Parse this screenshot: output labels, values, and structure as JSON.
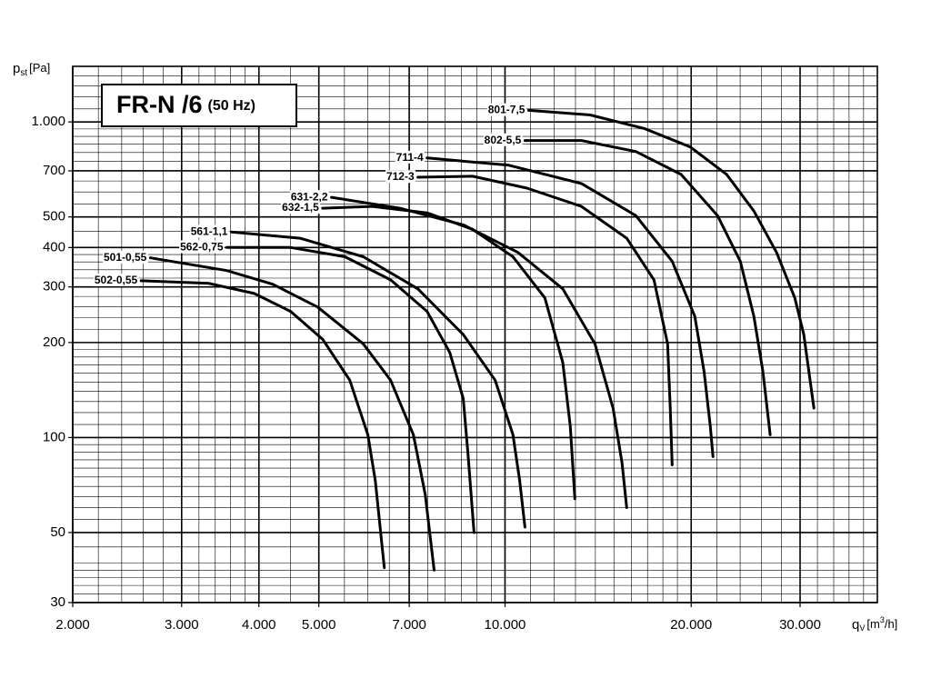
{
  "chart_data": {
    "type": "line",
    "title": "FR-N /6",
    "subtitle": "(50 Hz)",
    "ylabel": "p",
    "ylabel_sub": "st",
    "ylabel_unit": "[Pa]",
    "xlabel": "q",
    "xlabel_sub": "V",
    "xlabel_unit": "[m",
    "xlabel_sup": "3",
    "xlabel_unit_end": "/h]",
    "xscale": "log",
    "yscale": "log",
    "grid": true,
    "minor_grid": true,
    "xlim": [
      2000,
      40000
    ],
    "xticks": [
      {
        "value": 2000,
        "label": "2.000"
      },
      {
        "value": 3000,
        "label": "3.000"
      },
      {
        "value": 4000,
        "label": "4.000"
      },
      {
        "value": 5000,
        "label": "5.000"
      },
      {
        "value": 7000,
        "label": "7.000"
      },
      {
        "value": 10000,
        "label": "10.000"
      },
      {
        "value": 20000,
        "label": "20.000"
      },
      {
        "value": 30000,
        "label": "30.000"
      }
    ],
    "ylim": [
      30,
      1500
    ],
    "yticks": [
      30,
      50,
      100,
      200,
      300,
      400,
      500,
      700,
      {
        "value": 1000,
        "label": "1.000"
      }
    ],
    "series": [
      {
        "name": "502-0,55",
        "color": "#000000",
        "x": [
          2580,
          3320,
          3930,
          4500,
          5070,
          5610,
          6000,
          6170,
          6380
        ],
        "values": [
          314,
          308,
          286,
          251,
          205,
          152,
          102,
          73,
          38.7
        ]
      },
      {
        "name": "501-0,55",
        "color": "#000000",
        "x": [
          2670,
          3550,
          4210,
          4980,
          5900,
          6530,
          7110,
          7430,
          7680
        ],
        "values": [
          371,
          338,
          306,
          259,
          198,
          152,
          102,
          66,
          38
        ]
      },
      {
        "name": "562-0,75",
        "color": "#000000",
        "x": [
          3550,
          4500,
          5510,
          6530,
          7480,
          8140,
          8560,
          8710,
          8910
        ],
        "values": [
          400,
          400,
          374,
          316,
          251,
          186,
          133,
          89,
          50
        ]
      },
      {
        "name": "561-1,1",
        "color": "#000000",
        "x": [
          3610,
          4660,
          5900,
          7230,
          8560,
          9640,
          10300,
          10560,
          10770
        ],
        "values": [
          448,
          428,
          374,
          296,
          212,
          152,
          102,
          73,
          52
        ]
      },
      {
        "name": "632-1,5",
        "color": "#000000",
        "x": [
          5070,
          6100,
          7480,
          8860,
          10300,
          11600,
          12400,
          12750,
          12970
        ],
        "values": [
          533,
          540,
          515,
          457,
          374,
          277,
          173,
          109,
          64
        ]
      },
      {
        "name": "631-2,2",
        "color": "#000000",
        "x": [
          5240,
          6760,
          8560,
          10490,
          12400,
          13980,
          14950,
          15460,
          15730
        ],
        "values": [
          577,
          533,
          472,
          386,
          296,
          198,
          124,
          83,
          60
        ]
      },
      {
        "name": "712-3",
        "color": "#000000",
        "x": [
          7230,
          8860,
          10850,
          13290,
          15730,
          17410,
          18320,
          18500,
          18630
        ],
        "values": [
          668,
          673,
          617,
          540,
          428,
          316,
          198,
          124,
          82
        ]
      },
      {
        "name": "711-4",
        "color": "#000000",
        "x": [
          7480,
          10140,
          13290,
          16270,
          18630,
          20270,
          20980,
          21470,
          21690
        ],
        "values": [
          769,
          729,
          638,
          505,
          362,
          242,
          162,
          109,
          87
        ]
      },
      {
        "name": "802-5,5",
        "color": "#000000",
        "x": [
          10770,
          13290,
          16270,
          19260,
          22060,
          24010,
          25260,
          26120,
          26840
        ],
        "values": [
          873,
          873,
          806,
          682,
          505,
          362,
          242,
          162,
          102
        ]
      },
      {
        "name": "801-7,5",
        "color": "#000000",
        "x": [
          10920,
          13740,
          16830,
          19930,
          22820,
          25260,
          27480,
          29420,
          30420,
          31580
        ],
        "values": [
          1088,
          1052,
          952,
          833,
          682,
          522,
          386,
          277,
          212,
          124
        ]
      }
    ]
  }
}
